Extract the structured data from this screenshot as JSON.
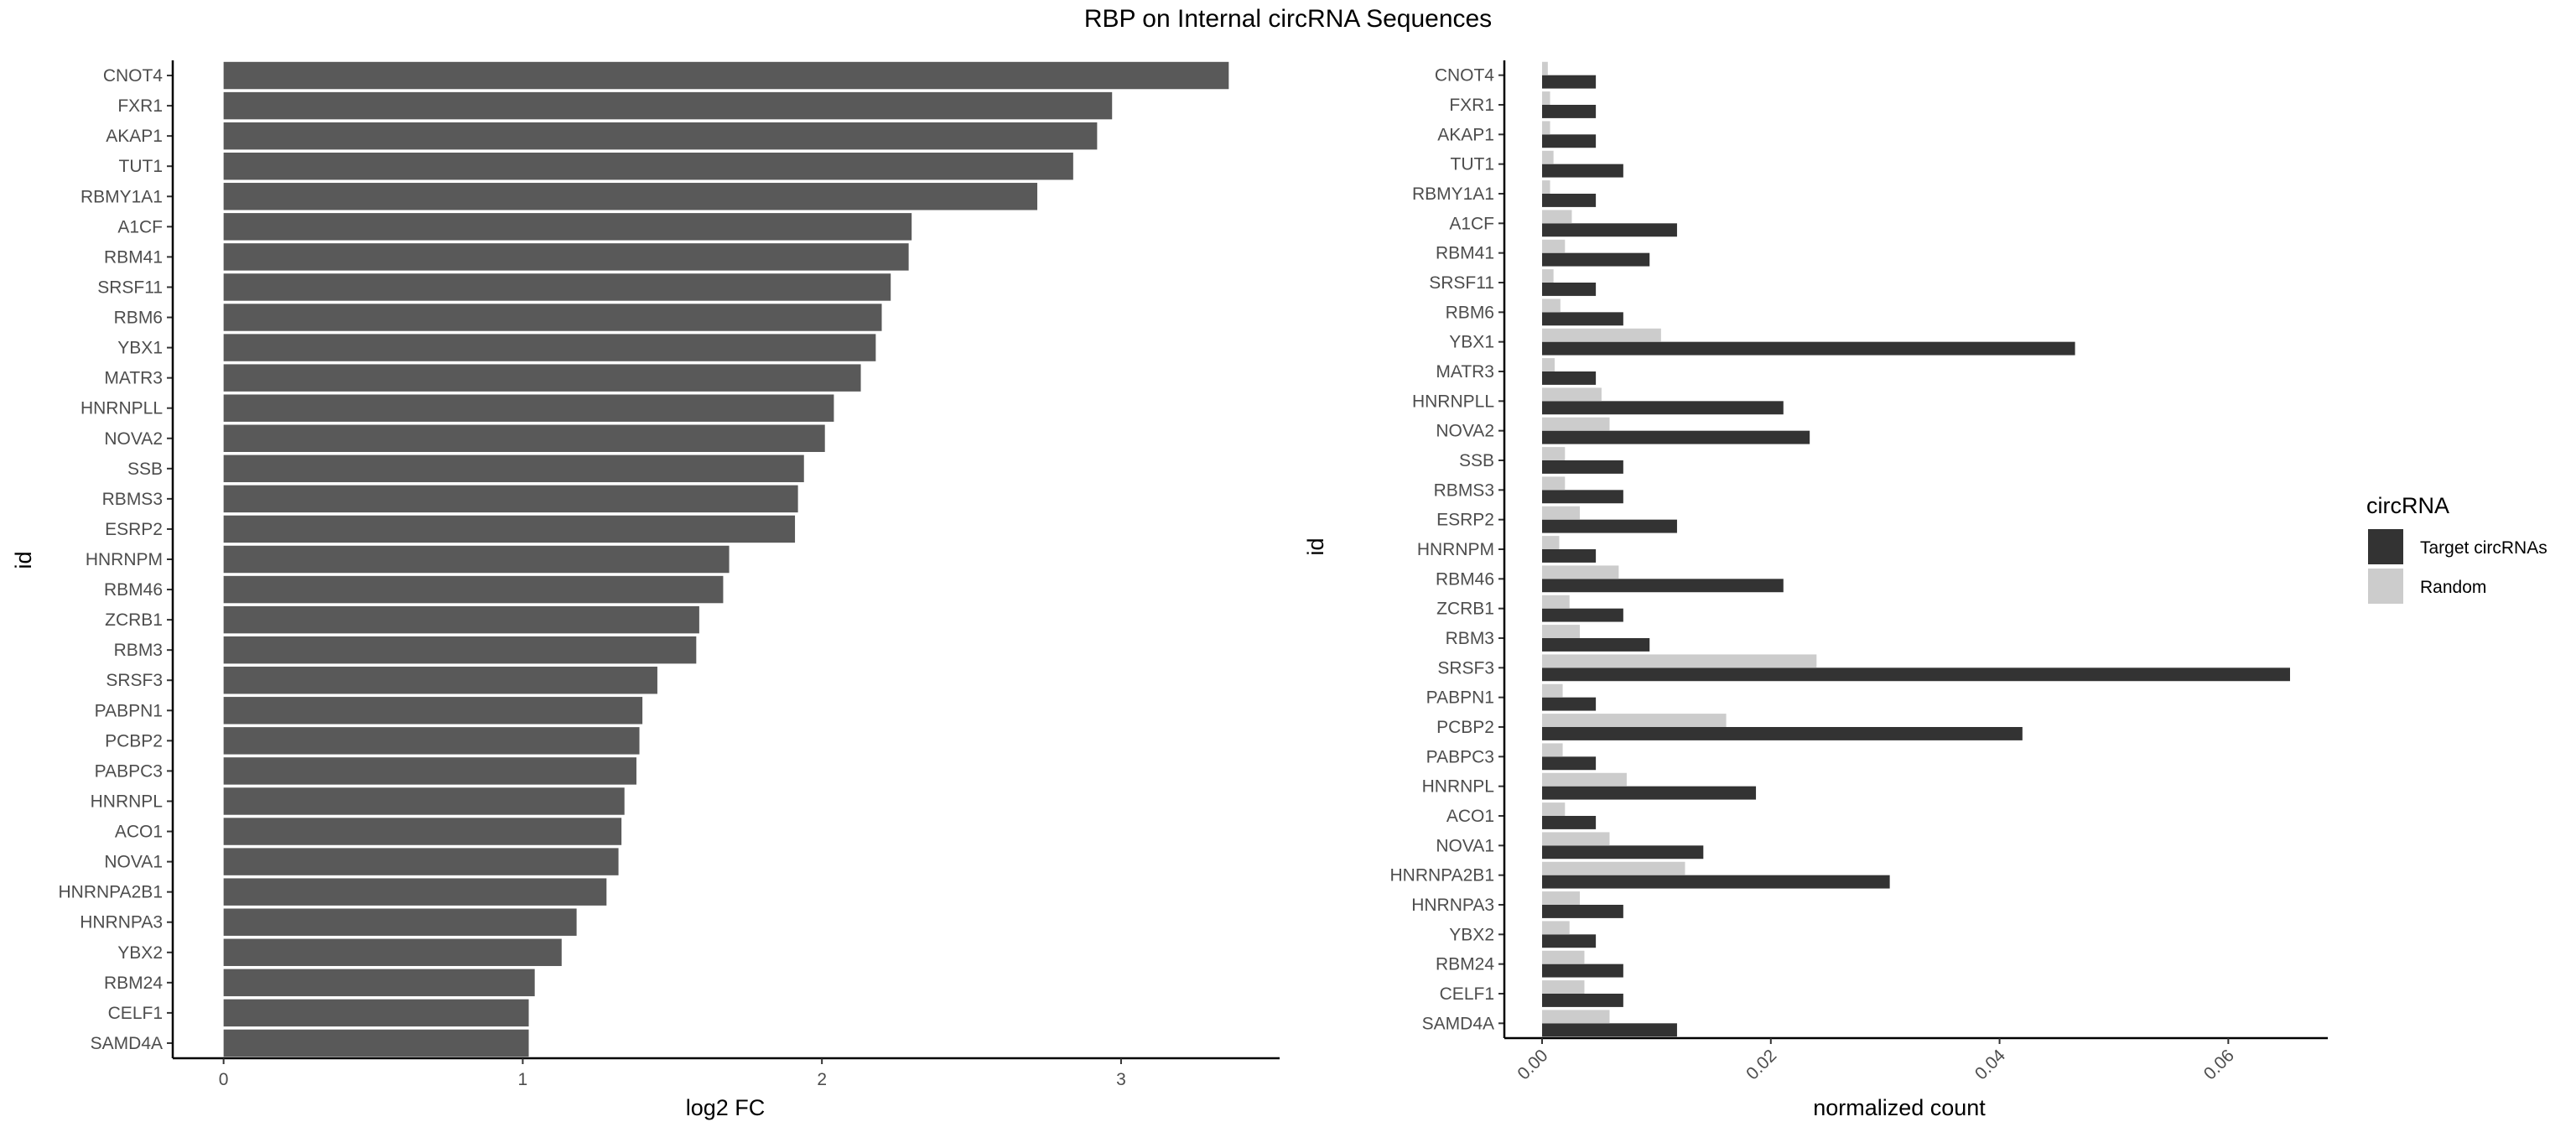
{
  "page_title": "RBP on Internal circRNA Sequences",
  "chart_data": [
    {
      "type": "bar",
      "orientation": "horizontal",
      "categories": [
        "CNOT4",
        "FXR1",
        "AKAP1",
        "TUT1",
        "RBMY1A1",
        "A1CF",
        "RBM41",
        "SRSF11",
        "RBM6",
        "YBX1",
        "MATR3",
        "HNRNPLL",
        "NOVA2",
        "SSB",
        "RBMS3",
        "ESRP2",
        "HNRNPM",
        "RBM46",
        "ZCRB1",
        "RBM3",
        "SRSF3",
        "PABPN1",
        "PCBP2",
        "PABPC3",
        "HNRNPL",
        "ACO1",
        "NOVA1",
        "HNRNPA2B1",
        "HNRNPA3",
        "YBX2",
        "RBM24",
        "CELF1",
        "SAMD4A"
      ],
      "values": [
        3.36,
        2.97,
        2.92,
        2.84,
        2.72,
        2.3,
        2.29,
        2.23,
        2.2,
        2.18,
        2.13,
        2.04,
        2.01,
        1.94,
        1.92,
        1.91,
        1.69,
        1.67,
        1.59,
        1.58,
        1.45,
        1.4,
        1.39,
        1.38,
        1.34,
        1.33,
        1.32,
        1.28,
        1.18,
        1.13,
        1.04,
        1.02,
        1.02
      ],
      "xlabel": "log2 FC",
      "ylabel": "id",
      "xlim": [
        -0.17,
        3.53
      ],
      "xticks": [
        0,
        1,
        2,
        3
      ],
      "xtick_labels": [
        "0",
        "1",
        "2",
        "3"
      ],
      "bar_color": "#595959",
      "grid": false
    },
    {
      "type": "bar",
      "orientation": "horizontal",
      "grouped": true,
      "categories": [
        "CNOT4",
        "FXR1",
        "AKAP1",
        "TUT1",
        "RBMY1A1",
        "A1CF",
        "RBM41",
        "SRSF11",
        "RBM6",
        "YBX1",
        "MATR3",
        "HNRNPLL",
        "NOVA2",
        "SSB",
        "RBMS3",
        "ESRP2",
        "HNRNPM",
        "RBM46",
        "ZCRB1",
        "RBM3",
        "SRSF3",
        "PABPN1",
        "PCBP2",
        "PABPC3",
        "HNRNPL",
        "ACO1",
        "NOVA1",
        "HNRNPA2B1",
        "HNRNPA3",
        "YBX2",
        "RBM24",
        "CELF1",
        "SAMD4A"
      ],
      "series": [
        {
          "name": "Target circRNAs",
          "color": "#333333",
          "values": [
            0.0047,
            0.0047,
            0.0047,
            0.0071,
            0.0047,
            0.0118,
            0.0094,
            0.0047,
            0.0071,
            0.0466,
            0.0047,
            0.0211,
            0.0234,
            0.0071,
            0.0071,
            0.0118,
            0.0047,
            0.0211,
            0.0071,
            0.0094,
            0.0654,
            0.0047,
            0.042,
            0.0047,
            0.0187,
            0.0047,
            0.0141,
            0.0304,
            0.0071,
            0.0047,
            0.0071,
            0.0071,
            0.0118
          ]
        },
        {
          "name": "Random",
          "color": "#cccccc",
          "values": [
            0.0005,
            0.0007,
            0.0007,
            0.001,
            0.0007,
            0.0026,
            0.002,
            0.001,
            0.0016,
            0.0104,
            0.0011,
            0.0052,
            0.0059,
            0.002,
            0.002,
            0.0033,
            0.0015,
            0.0067,
            0.0024,
            0.0033,
            0.024,
            0.0018,
            0.0161,
            0.0018,
            0.0074,
            0.002,
            0.0059,
            0.0125,
            0.0033,
            0.0024,
            0.0037,
            0.0037,
            0.0059
          ]
        }
      ],
      "xlabel": "normalized count",
      "ylabel": "id",
      "xlim": [
        -0.0033,
        0.0687
      ],
      "xticks": [
        0,
        0.02,
        0.04,
        0.06
      ],
      "xtick_labels": [
        "0.00",
        "0.02",
        "0.04",
        "0.06"
      ],
      "legend": {
        "title": "circRNA",
        "position": "right"
      },
      "grid": false
    }
  ]
}
